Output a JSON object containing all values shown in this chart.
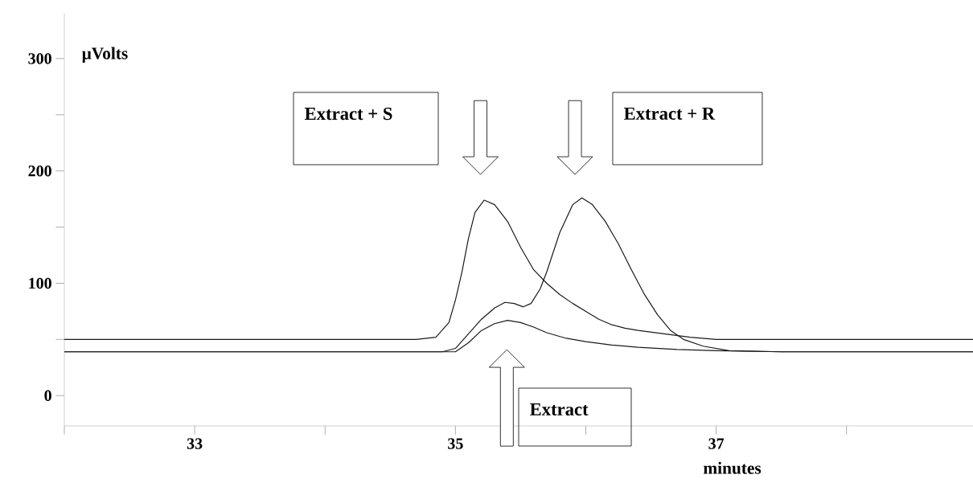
{
  "chart_data": {
    "type": "line",
    "xlabel": "minutes",
    "ylabel": "μVolts",
    "xlim": [
      32,
      38.97
    ],
    "ylim": [
      -27,
      340
    ],
    "xticks": [
      {
        "value": 32,
        "label": null
      },
      33,
      {
        "value": 34,
        "label": null
      },
      35,
      {
        "value": 36,
        "label": null
      },
      37,
      {
        "value": 38,
        "label": null
      }
    ],
    "yticks": [
      0,
      {
        "value": 50,
        "label": null
      },
      100,
      {
        "value": 150,
        "label": null
      },
      200,
      {
        "value": 250,
        "label": null
      },
      300
    ],
    "series": [
      {
        "color": "#1a1a1a",
        "x": [
          32.0,
          33.0,
          34.0,
          34.7,
          34.85,
          34.95,
          35.0,
          35.05,
          35.1,
          35.15,
          35.22,
          35.3,
          35.4,
          35.5,
          35.6,
          35.7,
          35.8,
          35.9,
          36.0,
          36.1,
          36.2,
          36.3,
          36.4,
          36.6,
          36.8,
          37.0,
          37.5,
          38.0,
          38.97
        ],
        "values": [
          50,
          50,
          50,
          50,
          52,
          65,
          85,
          110,
          140,
          163,
          174,
          170,
          155,
          132,
          112,
          100,
          90,
          82,
          75,
          68,
          63,
          60,
          58,
          55,
          52,
          50,
          50,
          50,
          50
        ]
      },
      {
        "color": "#1a1a1a",
        "x": [
          32.0,
          34.9,
          35.0,
          35.1,
          35.2,
          35.3,
          35.38,
          35.45,
          35.52,
          35.58,
          35.65,
          35.7,
          35.8,
          35.9,
          35.97,
          36.05,
          36.15,
          36.25,
          36.35,
          36.45,
          36.55,
          36.65,
          36.75,
          36.9,
          37.1,
          37.5,
          38.97
        ],
        "values": [
          39,
          39,
          42,
          55,
          68,
          78,
          83,
          82,
          79,
          82,
          95,
          110,
          145,
          170,
          176,
          170,
          155,
          135,
          112,
          90,
          72,
          58,
          50,
          44,
          40,
          39,
          39
        ]
      },
      {
        "color": "#1a1a1a",
        "x": [
          32.0,
          35.0,
          35.1,
          35.2,
          35.3,
          35.4,
          35.5,
          35.6,
          35.7,
          35.85,
          36.0,
          36.2,
          36.4,
          36.7,
          37.0,
          37.5,
          38.97
        ],
        "values": [
          39,
          39,
          47,
          58,
          64,
          67,
          65,
          61,
          56,
          51,
          48,
          45,
          43,
          41,
          40,
          39,
          39
        ]
      }
    ],
    "annotations": [
      "Extract + S",
      "Extract + R",
      "Extract"
    ]
  }
}
